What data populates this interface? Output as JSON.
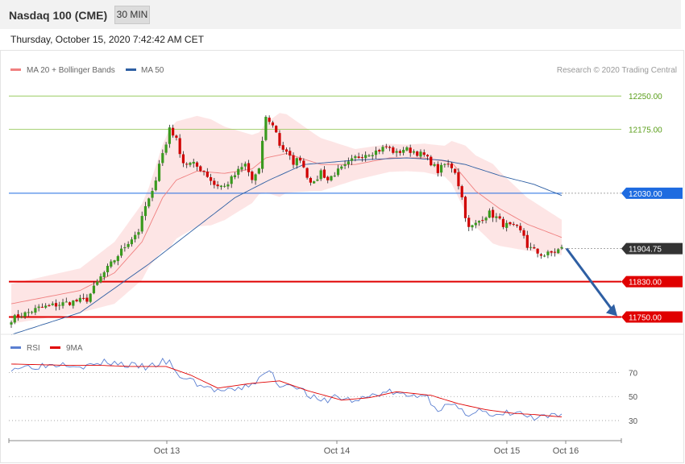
{
  "header": {
    "instrument": "Nasdaq 100 (CME)",
    "timeframe": "30 MIN",
    "datetime": "Thursday, October 15, 2020 7:42:42 AM CET"
  },
  "legend_main": [
    {
      "label": "MA 20 + Bollinger Bands",
      "color": "#f08080"
    },
    {
      "label": "MA 50",
      "color": "#2e5fa3"
    }
  ],
  "credit": "Research © 2020 Trading Central",
  "legend_rsi": [
    {
      "label": "RSI",
      "color": "#5b7fd1"
    },
    {
      "label": "9MA",
      "color": "#e00000"
    }
  ],
  "chart_data": {
    "type": "candlestick",
    "ylim": [
      11720,
      12285
    ],
    "x_ticks": [
      "Oct 13",
      "Oct 14",
      "Oct 15",
      "Oct 16"
    ],
    "levels": [
      {
        "value": 12250.0,
        "label": "12250.00",
        "color": "#8bc34a",
        "style": "thin"
      },
      {
        "value": 12175.0,
        "label": "12175.00",
        "color": "#8bc34a",
        "style": "thin"
      },
      {
        "value": 12030.0,
        "label": "12030.00",
        "color": "#1e6be0",
        "style": "box"
      },
      {
        "value": 11904.75,
        "label": "11904.75",
        "color": "#333333",
        "style": "box"
      },
      {
        "value": 11830.0,
        "label": "11830.00",
        "color": "#e00000",
        "style": "thick"
      },
      {
        "value": 11750.0,
        "label": "11750.00",
        "color": "#e00000",
        "style": "thick"
      }
    ],
    "arrow": {
      "from": 11905,
      "to": 11752,
      "color": "#2e5fa3"
    },
    "close_anchors": [
      [
        0,
        11745
      ],
      [
        8,
        11770
      ],
      [
        16,
        11782
      ],
      [
        22,
        11790
      ],
      [
        26,
        11840
      ],
      [
        30,
        11880
      ],
      [
        34,
        11920
      ],
      [
        37,
        11945
      ],
      [
        39,
        12000
      ],
      [
        41,
        12030
      ],
      [
        43,
        12100
      ],
      [
        45,
        12140
      ],
      [
        46,
        12180
      ],
      [
        48,
        12150
      ],
      [
        50,
        12100
      ],
      [
        53,
        12095
      ],
      [
        56,
        12080
      ],
      [
        59,
        12050
      ],
      [
        62,
        12045
      ],
      [
        66,
        12080
      ],
      [
        68,
        12095
      ],
      [
        70,
        12060
      ],
      [
        72,
        12080
      ],
      [
        73,
        12150
      ],
      [
        74,
        12200
      ],
      [
        75,
        12195
      ],
      [
        77,
        12170
      ],
      [
        78,
        12140
      ],
      [
        80,
        12120
      ],
      [
        82,
        12100
      ],
      [
        84,
        12110
      ],
      [
        86,
        12070
      ],
      [
        88,
        12050
      ],
      [
        90,
        12080
      ],
      [
        92,
        12060
      ],
      [
        94,
        12075
      ],
      [
        97,
        12090
      ],
      [
        100,
        12110
      ],
      [
        103,
        12120
      ],
      [
        106,
        12125
      ],
      [
        109,
        12135
      ],
      [
        112,
        12120
      ],
      [
        114,
        12130
      ],
      [
        117,
        12125
      ],
      [
        120,
        12115
      ],
      [
        122,
        12100
      ],
      [
        124,
        12080
      ],
      [
        126,
        12095
      ],
      [
        128,
        12090
      ],
      [
        129,
        12080
      ],
      [
        130,
        12050
      ],
      [
        131,
        12020
      ],
      [
        132,
        11980
      ],
      [
        133,
        11950
      ],
      [
        135,
        11960
      ],
      [
        137,
        11975
      ],
      [
        139,
        11985
      ],
      [
        141,
        11975
      ],
      [
        143,
        11960
      ],
      [
        145,
        11955
      ],
      [
        147,
        11950
      ],
      [
        149,
        11935
      ],
      [
        150,
        11910
      ],
      [
        151,
        11905
      ],
      [
        153,
        11895
      ],
      [
        155,
        11890
      ],
      [
        157,
        11895
      ],
      [
        160,
        11905
      ]
    ],
    "ma20_anchors": [
      [
        0,
        11780
      ],
      [
        10,
        11795
      ],
      [
        20,
        11810
      ],
      [
        30,
        11850
      ],
      [
        38,
        11920
      ],
      [
        44,
        12020
      ],
      [
        48,
        12060
      ],
      [
        54,
        12080
      ],
      [
        62,
        12075
      ],
      [
        70,
        12085
      ],
      [
        74,
        12110
      ],
      [
        80,
        12120
      ],
      [
        90,
        12095
      ],
      [
        100,
        12095
      ],
      [
        110,
        12110
      ],
      [
        120,
        12110
      ],
      [
        128,
        12100
      ],
      [
        135,
        12035
      ],
      [
        142,
        11995
      ],
      [
        150,
        11960
      ],
      [
        160,
        11930
      ]
    ],
    "ma50_anchors": [
      [
        0,
        11710
      ],
      [
        20,
        11760
      ],
      [
        40,
        11870
      ],
      [
        55,
        11960
      ],
      [
        65,
        12020
      ],
      [
        75,
        12060
      ],
      [
        85,
        12095
      ],
      [
        100,
        12105
      ],
      [
        115,
        12110
      ],
      [
        125,
        12105
      ],
      [
        132,
        12095
      ],
      [
        142,
        12070
      ],
      [
        152,
        12050
      ],
      [
        160,
        12025
      ]
    ],
    "bb_half_width_anchors": [
      [
        0,
        45
      ],
      [
        20,
        50
      ],
      [
        40,
        90
      ],
      [
        46,
        135
      ],
      [
        58,
        120
      ],
      [
        72,
        70
      ],
      [
        78,
        95
      ],
      [
        88,
        65
      ],
      [
        100,
        35
      ],
      [
        115,
        30
      ],
      [
        126,
        35
      ],
      [
        132,
        75
      ],
      [
        140,
        90
      ],
      [
        150,
        60
      ],
      [
        160,
        40
      ]
    ],
    "rsi": {
      "ylim": [
        20,
        85
      ],
      "levels": [
        70,
        50,
        30
      ],
      "rsi_anchors": [
        [
          0,
          74
        ],
        [
          10,
          76
        ],
        [
          16,
          78
        ],
        [
          22,
          75
        ],
        [
          28,
          79
        ],
        [
          34,
          76
        ],
        [
          40,
          74
        ],
        [
          44,
          79
        ],
        [
          46,
          78
        ],
        [
          48,
          68
        ],
        [
          52,
          64
        ],
        [
          56,
          58
        ],
        [
          60,
          55
        ],
        [
          64,
          54
        ],
        [
          68,
          58
        ],
        [
          72,
          64
        ],
        [
          75,
          72
        ],
        [
          78,
          59
        ],
        [
          82,
          61
        ],
        [
          86,
          52
        ],
        [
          90,
          45
        ],
        [
          94,
          50
        ],
        [
          100,
          46
        ],
        [
          106,
          52
        ],
        [
          110,
          54
        ],
        [
          115,
          50
        ],
        [
          120,
          52
        ],
        [
          124,
          40
        ],
        [
          128,
          43
        ],
        [
          132,
          35
        ],
        [
          136,
          40
        ],
        [
          140,
          32
        ],
        [
          144,
          36
        ],
        [
          148,
          36
        ],
        [
          152,
          31
        ],
        [
          156,
          33
        ],
        [
          160,
          34
        ]
      ],
      "ma_anchors": [
        [
          0,
          77
        ],
        [
          15,
          76
        ],
        [
          25,
          76
        ],
        [
          35,
          75
        ],
        [
          45,
          75
        ],
        [
          52,
          68
        ],
        [
          60,
          57
        ],
        [
          70,
          61
        ],
        [
          78,
          63
        ],
        [
          86,
          55
        ],
        [
          96,
          47
        ],
        [
          104,
          49
        ],
        [
          112,
          54
        ],
        [
          122,
          51
        ],
        [
          130,
          44
        ],
        [
          138,
          39
        ],
        [
          146,
          36
        ],
        [
          152,
          35
        ],
        [
          160,
          33
        ]
      ]
    }
  }
}
